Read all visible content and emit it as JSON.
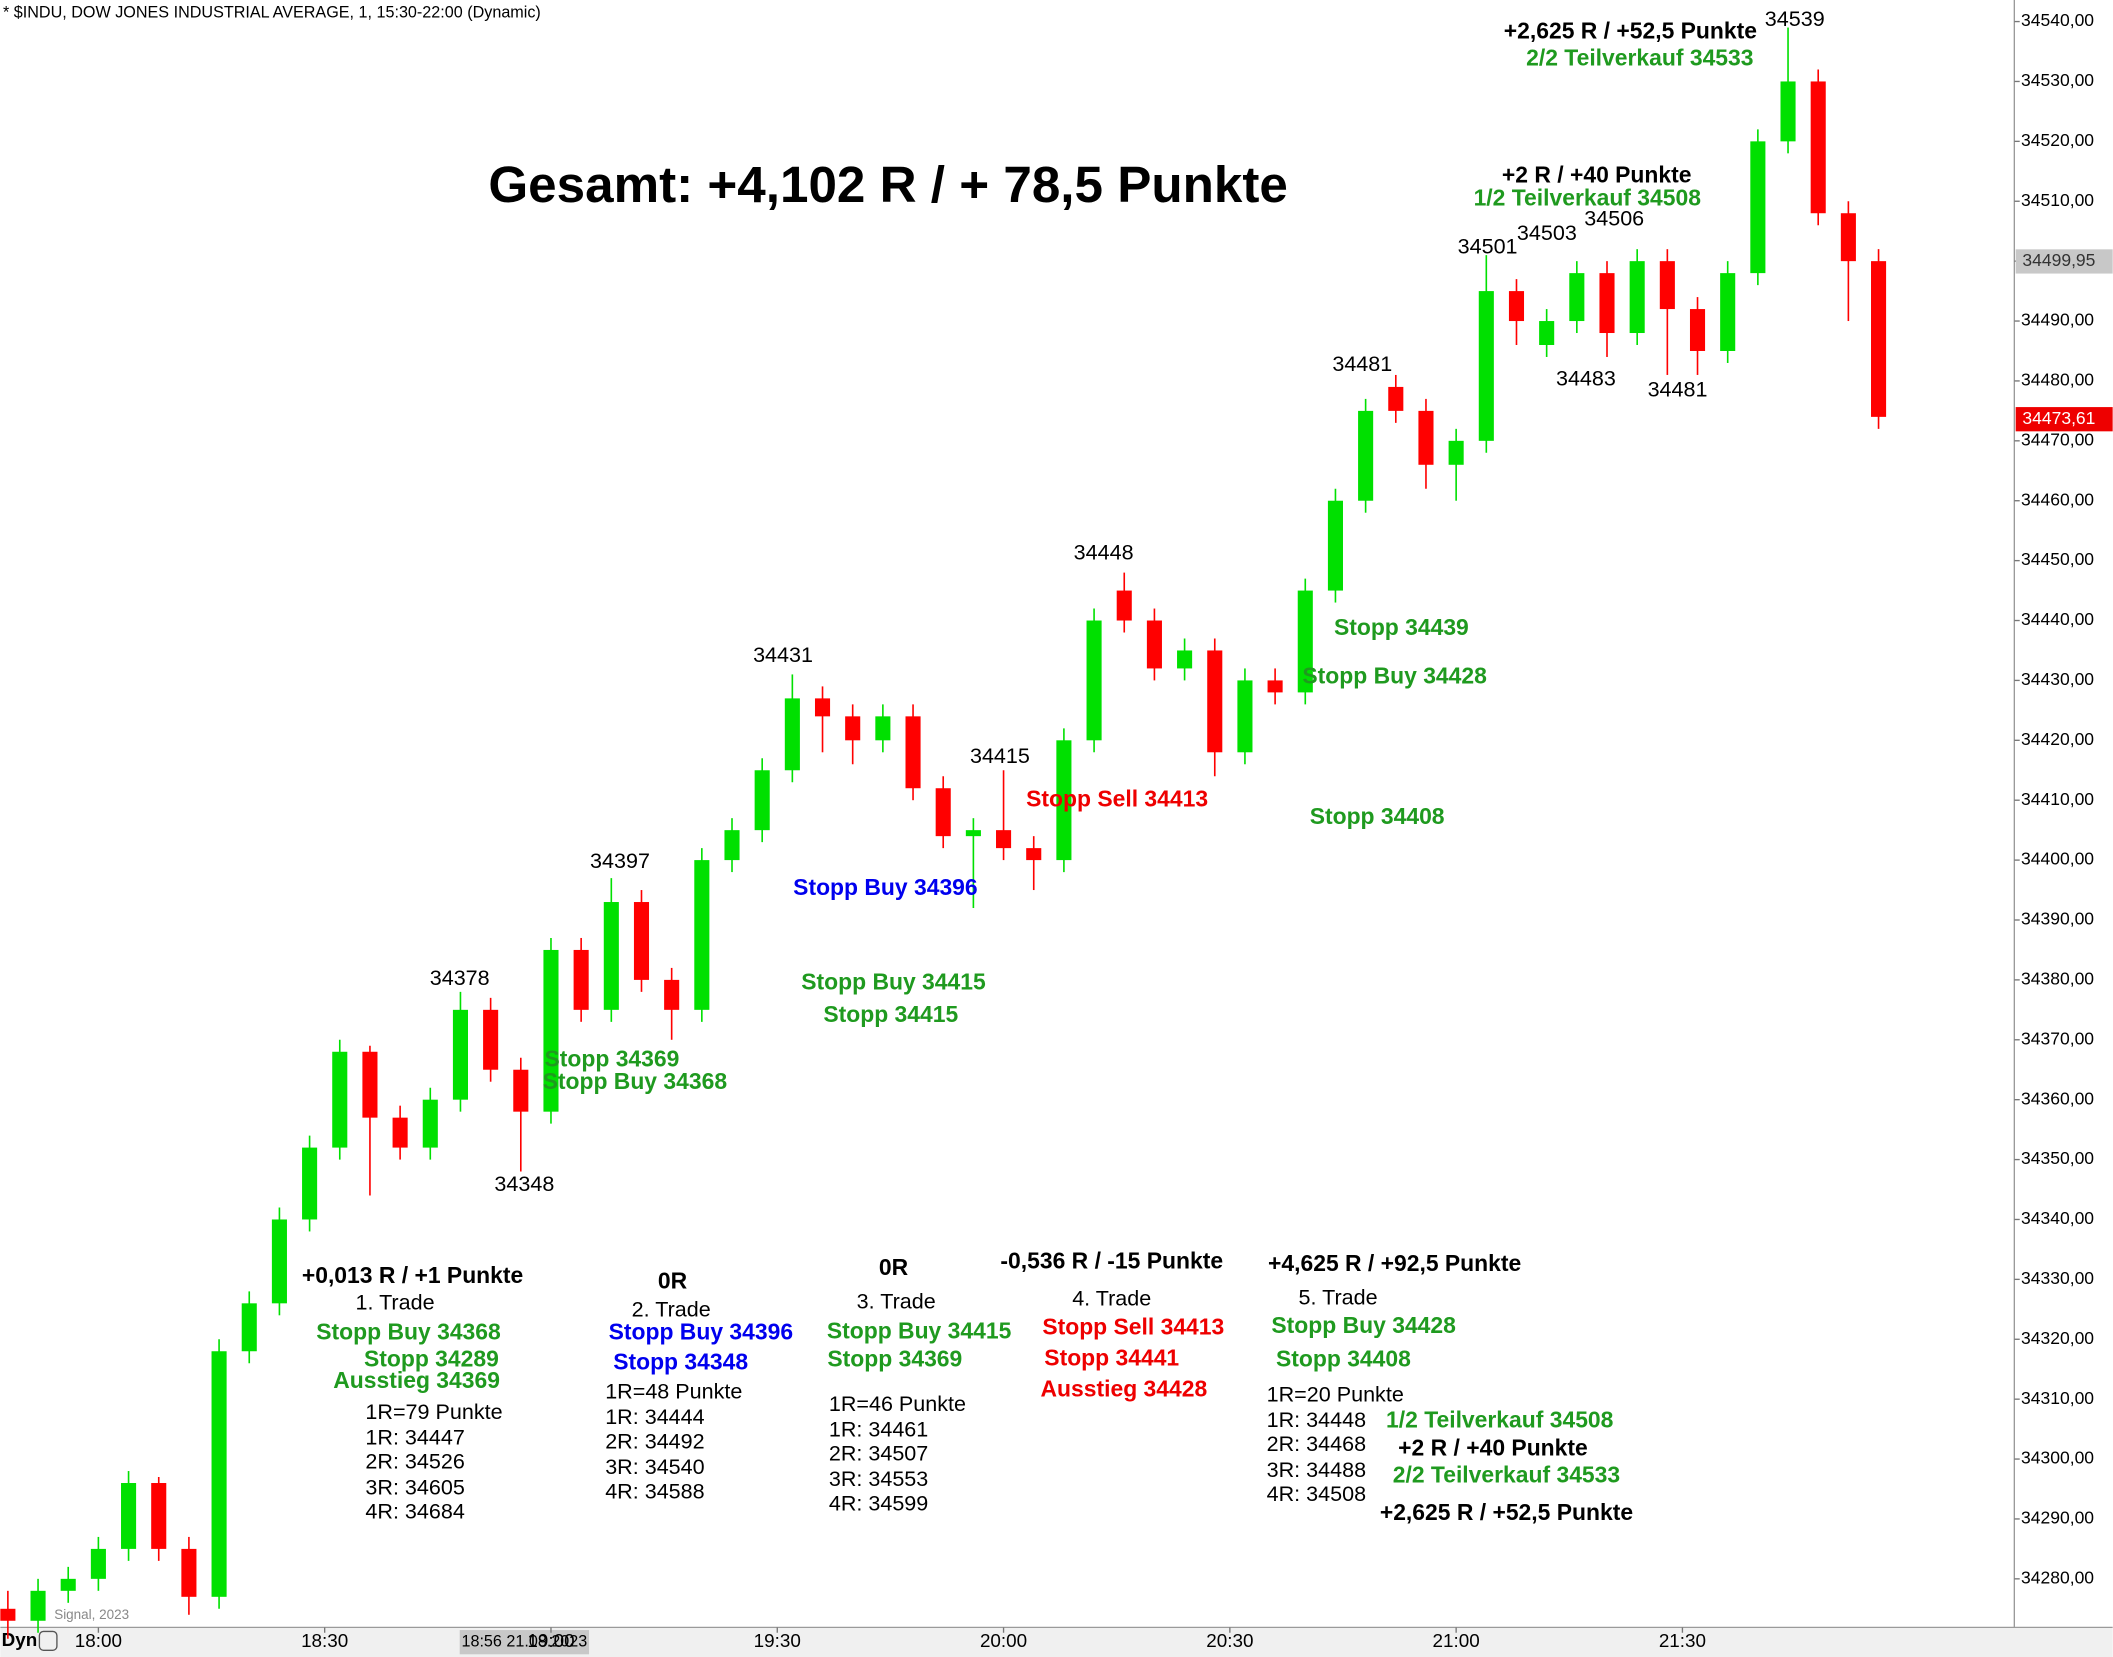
{
  "chart_data": {
    "type": "candlestick",
    "header": "* $INDU, DOW JONES INDUSTRIAL AVERAGE, 1, 15:30-22:00 (Dynamic)",
    "title": "Gesamt: +4,102 R / + 78,5 Punkte",
    "up_color": "#00e000",
    "down_color": "#ff0000",
    "x": [
      "17:48",
      "17:52",
      "17:56",
      "18:00",
      "18:04",
      "18:08",
      "18:12",
      "18:16",
      "18:20",
      "18:24",
      "18:28",
      "18:32",
      "18:36",
      "18:40",
      "18:44",
      "18:48",
      "18:52",
      "18:56",
      "19:00",
      "19:04",
      "19:08",
      "19:12",
      "19:16",
      "19:20",
      "19:24",
      "19:28",
      "19:32",
      "19:36",
      "19:40",
      "19:44",
      "19:48",
      "19:52",
      "19:56",
      "20:00",
      "20:04",
      "20:08",
      "20:12",
      "20:16",
      "20:20",
      "20:24",
      "20:28",
      "20:32",
      "20:36",
      "20:40",
      "20:44",
      "20:48",
      "20:52",
      "20:56",
      "21:00",
      "21:04",
      "21:08",
      "21:12",
      "21:16",
      "21:20",
      "21:24",
      "21:28",
      "21:32",
      "21:36",
      "21:40",
      "21:44",
      "21:48",
      "21:52",
      "21:56"
    ],
    "open": [
      34275,
      34273,
      34278,
      34280,
      34285,
      34296,
      34285,
      34277,
      34318,
      34326,
      34340,
      34352,
      34368,
      34357,
      34352,
      34360,
      34375,
      34365,
      34358,
      34385,
      34375,
      34393,
      34380,
      34375,
      34400,
      34405,
      34415,
      34427,
      34424,
      34420,
      34424,
      34412,
      34404,
      34405,
      34402,
      34400,
      34420,
      34445,
      34440,
      34432,
      34435,
      34418,
      34430,
      34428,
      34445,
      34460,
      34479,
      34475,
      34466,
      34470,
      34495,
      34486,
      34490,
      34498,
      34488,
      34500,
      34492,
      34485,
      34498,
      34520,
      34530,
      34508,
      34500
    ],
    "high": [
      34278,
      34280,
      34282,
      34287,
      34298,
      34297,
      34287,
      34320,
      34328,
      34342,
      34354,
      34370,
      34369,
      34359,
      34362,
      34378,
      34377,
      34367,
      34387,
      34387,
      34397,
      34395,
      34382,
      34402,
      34407,
      34417,
      34431,
      34429,
      34426,
      34426,
      34426,
      34414,
      34407,
      34415,
      34404,
      34422,
      34442,
      34448,
      34442,
      34437,
      34437,
      34432,
      34432,
      34447,
      34462,
      34477,
      34481,
      34477,
      34472,
      34501,
      34497,
      34492,
      34500,
      34500,
      34502,
      34502,
      34494,
      34500,
      34522,
      34539,
      34532,
      34510,
      34502
    ],
    "low": [
      34270,
      34271,
      34276,
      34278,
      34283,
      34283,
      34274,
      34275,
      34316,
      34324,
      34338,
      34350,
      34344,
      34350,
      34350,
      34358,
      34363,
      34348,
      34356,
      34373,
      34373,
      34378,
      34370,
      34373,
      34398,
      34403,
      34413,
      34418,
      34416,
      34418,
      34410,
      34402,
      34392,
      34400,
      34395,
      34398,
      34418,
      34438,
      34430,
      34430,
      34414,
      34416,
      34426,
      34426,
      34443,
      34458,
      34473,
      34462,
      34460,
      34468,
      34486,
      34484,
      34488,
      34484,
      34486,
      34481,
      34481,
      34483,
      34496,
      34518,
      34506,
      34490,
      34472
    ],
    "close": [
      34273,
      34278,
      34280,
      34285,
      34296,
      34285,
      34277,
      34318,
      34326,
      34340,
      34352,
      34368,
      34357,
      34352,
      34360,
      34375,
      34365,
      34358,
      34385,
      34375,
      34393,
      34380,
      34375,
      34400,
      34405,
      34415,
      34427,
      34424,
      34420,
      34424,
      34412,
      34404,
      34405,
      34402,
      34400,
      34420,
      34440,
      34440,
      34432,
      34435,
      34418,
      34430,
      34428,
      34445,
      34460,
      34475,
      34475,
      34466,
      34470,
      34495,
      34490,
      34490,
      34498,
      34488,
      34500,
      34492,
      34485,
      34498,
      34520,
      34530,
      34508,
      34500,
      34474
    ],
    "xlim": [
      "17:47",
      "22:14"
    ],
    "xticks": [
      "18:00",
      "18:30",
      "19:00",
      "19:30",
      "20:00",
      "20:30",
      "21:00",
      "21:30"
    ],
    "ylim": [
      34271.9,
      34543.6
    ],
    "yticks": [
      {
        "value": 34280,
        "label": "34280,00"
      },
      {
        "value": 34290,
        "label": "34290,00"
      },
      {
        "value": 34300,
        "label": "34300,00"
      },
      {
        "value": 34310,
        "label": "34310,00"
      },
      {
        "value": 34320,
        "label": "34320,00"
      },
      {
        "value": 34330,
        "label": "34330,00"
      },
      {
        "value": 34340,
        "label": "34340,00"
      },
      {
        "value": 34350,
        "label": "34350,00"
      },
      {
        "value": 34360,
        "label": "34360,00"
      },
      {
        "value": 34370,
        "label": "34370,00"
      },
      {
        "value": 34380,
        "label": "34380,00"
      },
      {
        "value": 34390,
        "label": "34390,00"
      },
      {
        "value": 34400,
        "label": "34400,00"
      },
      {
        "value": 34410,
        "label": "34410,00"
      },
      {
        "value": 34420,
        "label": "34420,00"
      },
      {
        "value": 34430,
        "label": "34430,00"
      },
      {
        "value": 34440,
        "label": "34440,00"
      },
      {
        "value": 34450,
        "label": "34450,00"
      },
      {
        "value": 34460,
        "label": "34460,00"
      },
      {
        "value": 34470,
        "label": "34470,00"
      },
      {
        "value": 34480,
        "label": "34480,00"
      },
      {
        "value": 34490,
        "label": "34490,00"
      },
      {
        "value": 34500,
        "label": "34500,00"
      },
      {
        "value": 34510,
        "label": "34510,00"
      },
      {
        "value": 34520,
        "label": "34520,00"
      },
      {
        "value": 34530,
        "label": "34530,00"
      },
      {
        "value": 34540,
        "label": "34540,00"
      }
    ],
    "price_markers": [
      {
        "value": 34499.95,
        "label": "34499,95",
        "color": "#c8c8c8"
      },
      {
        "value": 34473.61,
        "label": "34473,61",
        "color": "#ee0000"
      }
    ],
    "crosshair_label": "18:56 21.08.2023",
    "footer_left": "Dyn",
    "watermark": "Signal, 2023",
    "annotations": [
      {
        "text": "34539",
        "color": "#000000",
        "style": "normal"
      },
      {
        "text": "+2,625 R / +52,5 Punkte",
        "color": "#000000",
        "style": "bold"
      },
      {
        "text": "2/2 Teilverkauf 34533",
        "color": "#1f9a1f",
        "style": "bold"
      },
      {
        "text": "+2 R / +40 Punkte",
        "color": "#000000",
        "style": "bold"
      },
      {
        "text": "1/2 Teilverkauf 34508",
        "color": "#1f9a1f",
        "style": "bold"
      },
      {
        "text": "34506",
        "color": "#000000",
        "style": "normal"
      },
      {
        "text": "34503",
        "color": "#000000",
        "style": "normal"
      },
      {
        "text": "34501",
        "color": "#000000",
        "style": "normal"
      },
      {
        "text": "34481",
        "color": "#000000",
        "style": "normal"
      },
      {
        "text": "34483",
        "color": "#000000",
        "style": "normal"
      },
      {
        "text": "34481",
        "color": "#000000",
        "style": "normal"
      },
      {
        "text": "34448",
        "color": "#000000",
        "style": "normal"
      },
      {
        "text": "34431",
        "color": "#000000",
        "style": "normal"
      },
      {
        "text": "34415",
        "color": "#000000",
        "style": "normal"
      },
      {
        "text": "34397",
        "color": "#000000",
        "style": "normal"
      },
      {
        "text": "34378",
        "color": "#000000",
        "style": "normal"
      },
      {
        "text": "34348",
        "color": "#000000",
        "style": "normal"
      },
      {
        "text": "Stopp 34439",
        "color": "#1f9a1f",
        "style": "bold"
      },
      {
        "text": "Stopp Buy 34428",
        "color": "#1f9a1f",
        "style": "bold"
      },
      {
        "text": "Stopp Sell 34413",
        "color": "#ee0000",
        "style": "bold"
      },
      {
        "text": "Stopp 34408",
        "color": "#1f9a1f",
        "style": "bold"
      },
      {
        "text": "Stopp Buy 34396",
        "color": "#0000ee",
        "style": "bold"
      },
      {
        "text": "Stopp Buy 34415",
        "color": "#1f9a1f",
        "style": "bold"
      },
      {
        "text": "Stopp 34415",
        "color": "#1f9a1f",
        "style": "bold"
      },
      {
        "text": "Stopp 34369",
        "color": "#1f9a1f",
        "style": "bold"
      },
      {
        "text": "Stopp Buy 34368",
        "color": "#1f9a1f",
        "style": "bold"
      },
      {
        "text": "+0,013 R / +1 Punkte",
        "color": "#000000",
        "style": "bold"
      },
      {
        "text": "1. Trade",
        "color": "#000000",
        "style": "normal"
      },
      {
        "text": "Stopp Buy 34368",
        "color": "#1f9a1f",
        "style": "bold"
      },
      {
        "text": "Stopp 34289",
        "color": "#1f9a1f",
        "style": "bold"
      },
      {
        "text": "Ausstieg 34369",
        "color": "#1f9a1f",
        "style": "bold"
      },
      {
        "text": "1R=79 Punkte",
        "color": "#000000",
        "style": "normal"
      },
      {
        "text": "1R: 34447",
        "color": "#000000",
        "style": "normal"
      },
      {
        "text": "2R: 34526",
        "color": "#000000",
        "style": "normal"
      },
      {
        "text": "3R: 34605",
        "color": "#000000",
        "style": "normal"
      },
      {
        "text": "4R: 34684",
        "color": "#000000",
        "style": "normal"
      },
      {
        "text": "0R",
        "color": "#000000",
        "style": "bold"
      },
      {
        "text": "2. Trade",
        "color": "#000000",
        "style": "normal"
      },
      {
        "text": "Stopp Buy 34396",
        "color": "#0000ee",
        "style": "bold"
      },
      {
        "text": "Stopp 34348",
        "color": "#0000ee",
        "style": "bold"
      },
      {
        "text": "1R=48 Punkte",
        "color": "#000000",
        "style": "normal"
      },
      {
        "text": "1R: 34444",
        "color": "#000000",
        "style": "normal"
      },
      {
        "text": "2R: 34492",
        "color": "#000000",
        "style": "normal"
      },
      {
        "text": "3R: 34540",
        "color": "#000000",
        "style": "normal"
      },
      {
        "text": "4R: 34588",
        "color": "#000000",
        "style": "normal"
      },
      {
        "text": "0R",
        "color": "#000000",
        "style": "bold"
      },
      {
        "text": "3. Trade",
        "color": "#000000",
        "style": "normal"
      },
      {
        "text": "Stopp Buy 34415",
        "color": "#1f9a1f",
        "style": "bold"
      },
      {
        "text": "Stopp 34369",
        "color": "#1f9a1f",
        "style": "bold"
      },
      {
        "text": "1R=46 Punkte",
        "color": "#000000",
        "style": "normal"
      },
      {
        "text": "1R: 34461",
        "color": "#000000",
        "style": "normal"
      },
      {
        "text": "2R: 34507",
        "color": "#000000",
        "style": "normal"
      },
      {
        "text": "3R: 34553",
        "color": "#000000",
        "style": "normal"
      },
      {
        "text": "4R: 34599",
        "color": "#000000",
        "style": "normal"
      },
      {
        "text": "-0,536 R / -15 Punkte",
        "color": "#000000",
        "style": "bold"
      },
      {
        "text": "4. Trade",
        "color": "#000000",
        "style": "normal"
      },
      {
        "text": "Stopp Sell 34413",
        "color": "#ee0000",
        "style": "bold"
      },
      {
        "text": "Stopp 34441",
        "color": "#ee0000",
        "style": "bold"
      },
      {
        "text": "Ausstieg 34428",
        "color": "#ee0000",
        "style": "bold"
      },
      {
        "text": "+4,625 R / +92,5 Punkte",
        "color": "#000000",
        "style": "bold"
      },
      {
        "text": "5. Trade",
        "color": "#000000",
        "style": "normal"
      },
      {
        "text": "Stopp Buy 34428",
        "color": "#1f9a1f",
        "style": "bold"
      },
      {
        "text": "Stopp 34408",
        "color": "#1f9a1f",
        "style": "bold"
      },
      {
        "text": "1R=20 Punkte",
        "color": "#000000",
        "style": "normal"
      },
      {
        "text": "1R: 34448",
        "color": "#000000",
        "style": "normal"
      },
      {
        "text": "2R: 34468",
        "color": "#000000",
        "style": "normal"
      },
      {
        "text": "3R: 34488",
        "color": "#000000",
        "style": "normal"
      },
      {
        "text": "4R: 34508",
        "color": "#000000",
        "style": "normal"
      },
      {
        "text": "1/2 Teilverkauf 34508",
        "color": "#1f9a1f",
        "style": "bold"
      },
      {
        "text": "+2 R / +40 Punkte",
        "color": "#000000",
        "style": "bold"
      },
      {
        "text": "2/2 Teilverkauf 34533",
        "color": "#1f9a1f",
        "style": "bold"
      },
      {
        "text": "+2,625 R / +52,5 Punkte",
        "color": "#000000",
        "style": "bold"
      }
    ]
  }
}
